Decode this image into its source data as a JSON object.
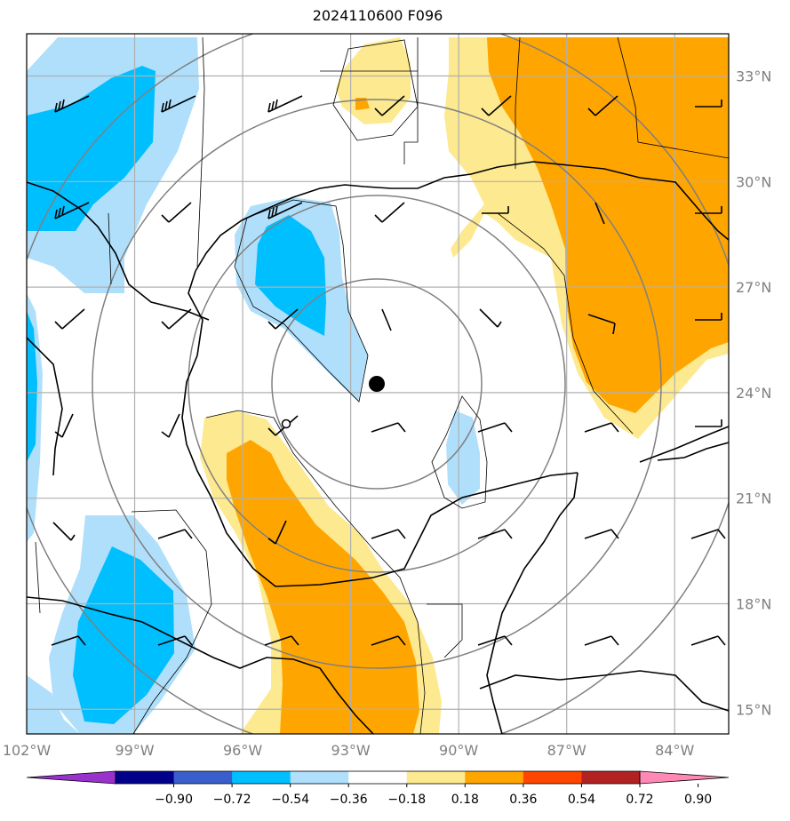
{
  "title": "2024110600 F096",
  "map": {
    "lon_range": [
      -102.0,
      -82.5
    ],
    "lat_range": [
      14.3,
      34.2
    ],
    "lat_ticks": [
      {
        "value": 15,
        "label": "15°N"
      },
      {
        "value": 18,
        "label": "18°N"
      },
      {
        "value": 21,
        "label": "21°N"
      },
      {
        "value": 24,
        "label": "24°N"
      },
      {
        "value": 27,
        "label": "27°N"
      },
      {
        "value": 30,
        "label": "30°N"
      },
      {
        "value": 33,
        "label": "33°N"
      }
    ],
    "lon_ticks": [
      {
        "value": -102,
        "label": "102°W"
      },
      {
        "value": -99,
        "label": "99°W"
      },
      {
        "value": -96,
        "label": "96°W"
      },
      {
        "value": -93,
        "label": "93°W"
      },
      {
        "value": -90,
        "label": "90°W"
      },
      {
        "value": -87,
        "label": "87°W"
      },
      {
        "value": -84,
        "label": "84°W"
      }
    ],
    "grid": true,
    "storm_center": {
      "lon": -92.55,
      "lat": 24.1
    },
    "range_rings": "concentric rings around storm center",
    "contour_colors": {
      "neg_0.36_0.18": "#afdffb",
      "neg_0.54_0.36": "#00bfff",
      "pos_0.18_0.36": "#fde98f",
      "pos_0.36_0.54": "#ffa500"
    }
  },
  "colorbar": {
    "colors": [
      "#9932cc",
      "#00008b",
      "#3a5fcd",
      "#00bfff",
      "#afdffb",
      "#ffffff",
      "#fde98f",
      "#ffa500",
      "#ff4500",
      "#b22222",
      "#ff88b4"
    ],
    "ticks": [
      "−0.90",
      "−0.72",
      "−0.54",
      "−0.36",
      "−0.18",
      "0.18",
      "0.36",
      "0.54",
      "0.72",
      "0.90"
    ]
  }
}
